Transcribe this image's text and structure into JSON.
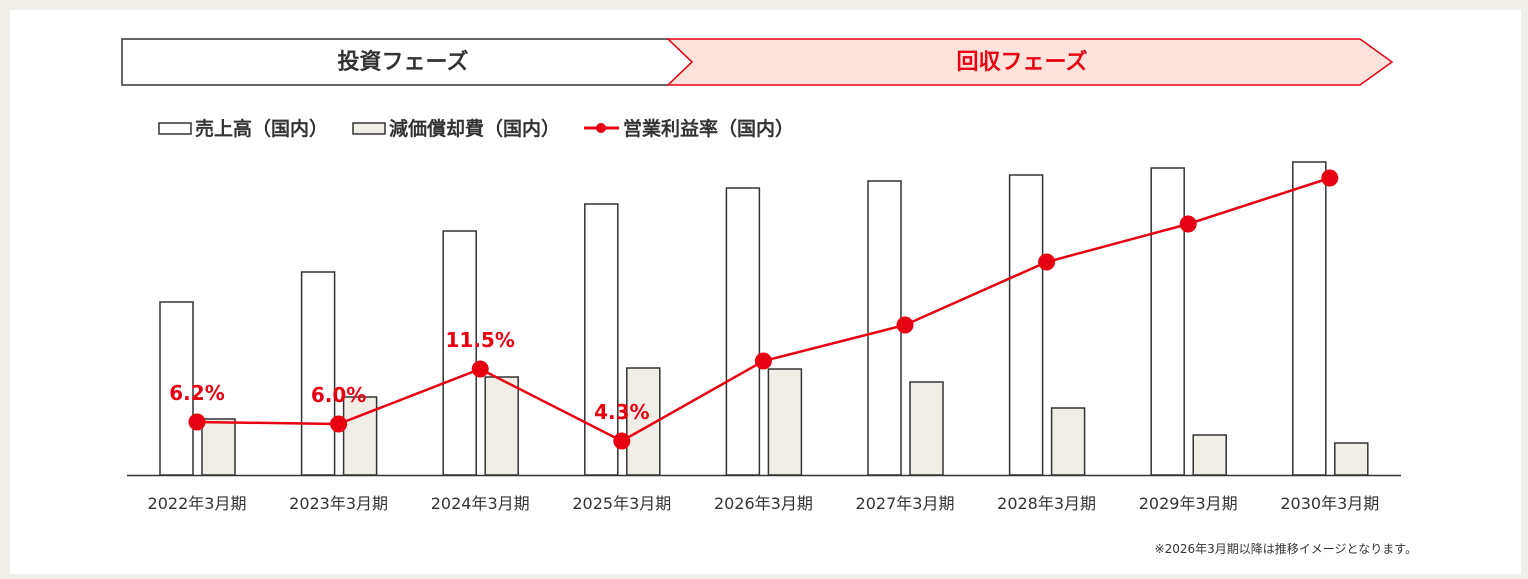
{
  "phases": [
    {
      "label": "投資フェーズ",
      "color": "#333333",
      "fill": "#ffffff",
      "stroke": "#333333"
    },
    {
      "label": "回収フェーズ",
      "color": "#e60012",
      "fill": "#fde3dc",
      "stroke": "#e60012"
    }
  ],
  "note": "※2026年3月期以降は推移イメージとなります。",
  "colors": {
    "revenue_fill": "#ffffff",
    "depreciation_fill": "#f1eee7",
    "bar_stroke": "#333333",
    "margin_line": "#e60012"
  },
  "chart_data": {
    "type": "bar",
    "categories": [
      "2022年3月期",
      "2023年3月期",
      "2024年3月期",
      "2025年3月期",
      "2026年3月期",
      "2027年3月期",
      "2028年3月期",
      "2029年3月期",
      "2030年3月期"
    ],
    "series": [
      {
        "name": "売上高（国内）",
        "type": "bar",
        "values": [
          173,
          203,
          244,
          271,
          287,
          294,
          300,
          307,
          313
        ]
      },
      {
        "name": "減価償却費（国内）",
        "type": "bar",
        "values": [
          56,
          78,
          98,
          107,
          106,
          93,
          67,
          40,
          32
        ]
      },
      {
        "name": "営業利益率（国内）",
        "type": "line",
        "values": [
          6.2,
          6.0,
          11.5,
          4.3,
          null,
          null,
          null,
          null,
          null
        ],
        "labels": [
          "6.2%",
          "6.0%",
          "11.5%",
          "4.3%",
          "",
          "",
          "",
          "",
          ""
        ]
      }
    ],
    "title": "",
    "xlabel": "",
    "ylabel": "",
    "ylim": [
      0,
      320
    ],
    "grid": false,
    "legend": "top-left"
  }
}
